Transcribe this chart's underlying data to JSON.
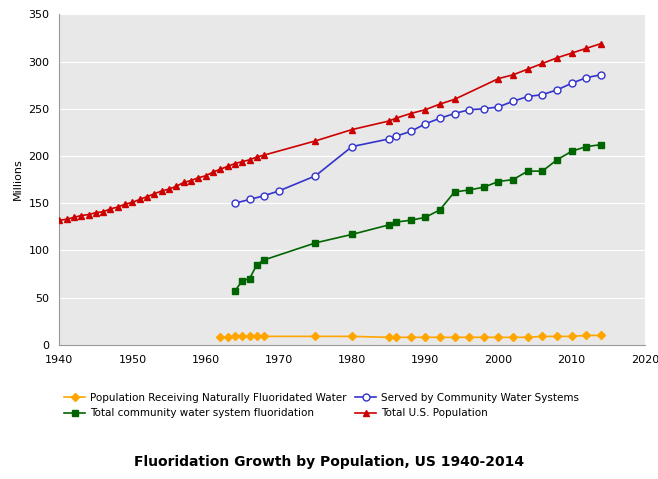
{
  "title": "Fluoridation Growth by Population, US 1940-2014",
  "ylabel": "Millions",
  "xlim": [
    1940,
    2020
  ],
  "ylim": [
    0,
    350
  ],
  "yticks": [
    0,
    50,
    100,
    150,
    200,
    250,
    300,
    350
  ],
  "xticks": [
    1940,
    1950,
    1960,
    1970,
    1980,
    1990,
    2000,
    2010,
    2020
  ],
  "total_us_population": {
    "years": [
      1940,
      1941,
      1942,
      1943,
      1944,
      1945,
      1946,
      1947,
      1948,
      1949,
      1950,
      1951,
      1952,
      1953,
      1954,
      1955,
      1956,
      1957,
      1958,
      1959,
      1960,
      1961,
      1962,
      1963,
      1964,
      1965,
      1966,
      1967,
      1968,
      1975,
      1980,
      1985,
      1986,
      1988,
      1990,
      1992,
      1994,
      2000,
      2002,
      2004,
      2006,
      2008,
      2010,
      2012,
      2014
    ],
    "values": [
      132,
      133,
      135,
      137,
      138,
      140,
      141,
      144,
      146,
      149,
      151,
      154,
      157,
      160,
      163,
      165,
      168,
      172,
      174,
      177,
      179,
      183,
      186,
      189,
      192,
      194,
      196,
      199,
      201,
      216,
      228,
      237,
      240,
      245,
      249,
      255,
      260,
      282,
      286,
      292,
      298,
      304,
      309,
      314,
      319
    ],
    "color": "#CC0000",
    "marker": "^",
    "markersize": 5,
    "label": "Total U.S. Population"
  },
  "served_by_cws": {
    "years": [
      1964,
      1966,
      1968,
      1970,
      1975,
      1980,
      1985,
      1986,
      1988,
      1990,
      1992,
      1994,
      1996,
      1998,
      2000,
      2002,
      2004,
      2006,
      2008,
      2010,
      2012,
      2014
    ],
    "values": [
      150,
      154,
      158,
      163,
      179,
      210,
      218,
      221,
      226,
      234,
      240,
      245,
      249,
      250,
      252,
      258,
      263,
      265,
      270,
      277,
      283,
      286
    ],
    "color": "#3333CC",
    "marker": "o",
    "markersize": 5,
    "markerfacecolor": "white",
    "label": "Served by Community Water Systems"
  },
  "total_cws_fluoridation": {
    "years": [
      1964,
      1965,
      1966,
      1967,
      1968,
      1975,
      1980,
      1985,
      1986,
      1988,
      1990,
      1992,
      1994,
      1996,
      1998,
      2000,
      2002,
      2004,
      2006,
      2008,
      2010,
      2012,
      2014
    ],
    "values": [
      57,
      68,
      70,
      85,
      90,
      108,
      117,
      127,
      130,
      132,
      135,
      143,
      162,
      164,
      167,
      173,
      175,
      184,
      184,
      196,
      205,
      210,
      212
    ],
    "color": "#006400",
    "marker": "s",
    "markersize": 5,
    "label": "Total community water system fluoridation"
  },
  "naturally_fluoridated": {
    "years": [
      1962,
      1963,
      1964,
      1965,
      1966,
      1967,
      1968,
      1975,
      1980,
      1985,
      1986,
      1988,
      1990,
      1992,
      1994,
      1996,
      1998,
      2000,
      2002,
      2004,
      2006,
      2008,
      2010,
      2012,
      2014
    ],
    "values": [
      8,
      8,
      9,
      9,
      9,
      9,
      9,
      9,
      9,
      8,
      8,
      8,
      8,
      8,
      8,
      8,
      8,
      8,
      8,
      8,
      9,
      9,
      9,
      10,
      10
    ],
    "color": "#FFA500",
    "marker": "D",
    "markersize": 4,
    "label": "Population Receiving Naturally Fluoridated Water"
  },
  "figure_facecolor": "#ffffff",
  "axes_facecolor": "#e8e8e8",
  "grid_color": "#ffffff",
  "title_fontsize": 10,
  "axis_label_fontsize": 8,
  "tick_fontsize": 8,
  "legend_fontsize": 7.5
}
